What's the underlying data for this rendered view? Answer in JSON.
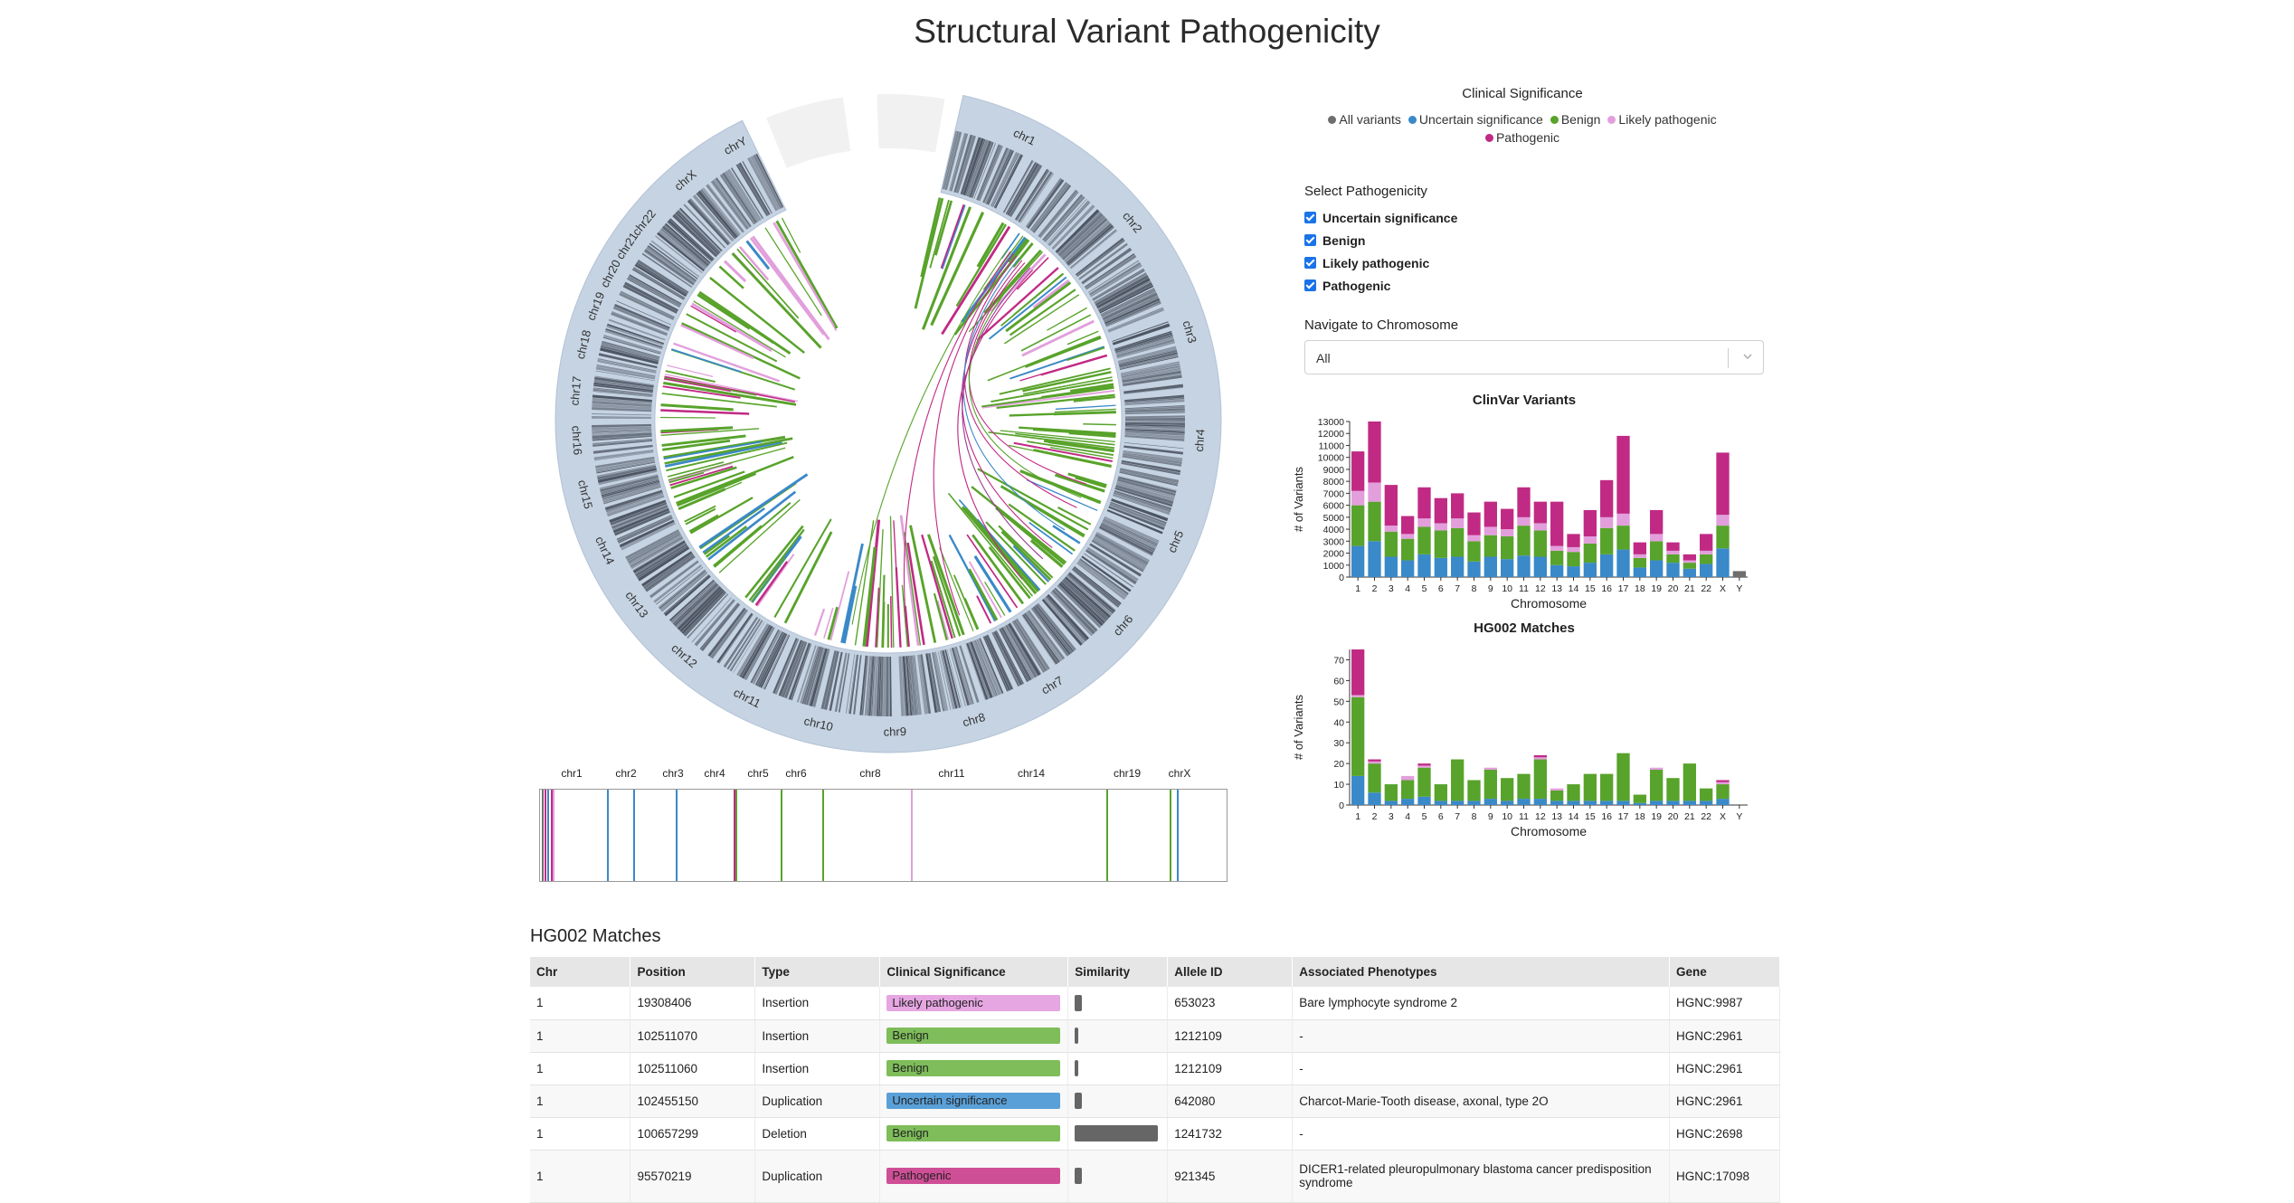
{
  "page": {
    "title": "Structural Variant Pathogenicity"
  },
  "colors": {
    "all": "#6e6e6e",
    "uncertain": "#3a89c9",
    "benign": "#58a32b",
    "likely_pathogenic": "#e29fdc",
    "pathogenic": "#c02a84",
    "ideogram_bg": "#c5d3e2",
    "band_dark": "#58606d"
  },
  "legend": {
    "title": "Clinical Significance",
    "items": [
      {
        "label": "All variants",
        "color": "#6e6e6e"
      },
      {
        "label": "Uncertain significance",
        "color": "#3a89c9"
      },
      {
        "label": "Benign",
        "color": "#58a32b"
      },
      {
        "label": "Likely pathogenic",
        "color": "#e29fdc"
      },
      {
        "label": "Pathogenic",
        "color": "#c02a84"
      }
    ]
  },
  "filters": {
    "title": "Select Pathogenicity",
    "options": [
      {
        "label": "Uncertain significance",
        "checked": true
      },
      {
        "label": "Benign",
        "checked": true
      },
      {
        "label": "Likely pathogenic",
        "checked": true
      },
      {
        "label": "Pathogenic",
        "checked": true
      }
    ]
  },
  "navigate": {
    "title": "Navigate to Chromosome",
    "selected": "All"
  },
  "circos": {
    "chromosomes": [
      "chr1",
      "chr2",
      "chr3",
      "chr4",
      "chr5",
      "chr6",
      "chr7",
      "chr8",
      "chr9",
      "chr10",
      "chr11",
      "chr12",
      "chr13",
      "chr14",
      "chr15",
      "chr16",
      "chr17",
      "chr18",
      "chr19",
      "chr20",
      "chr21",
      "chr22",
      "chrX",
      "chrY"
    ]
  },
  "linear_track": {
    "labels": [
      "chr1",
      "chr2",
      "chr3",
      "chr4",
      "chr5",
      "chr6",
      "chr8",
      "chr11",
      "chr14",
      "chr19",
      "chrX"
    ]
  },
  "chart_data": [
    {
      "type": "bar",
      "title": "ClinVar Variants",
      "xlabel": "Chromosome",
      "ylabel": "# of Variants",
      "ylim": [
        0,
        13000
      ],
      "yticks": [
        0,
        1000,
        2000,
        3000,
        4000,
        5000,
        6000,
        7000,
        8000,
        9000,
        10000,
        11000,
        12000,
        13000
      ],
      "stacked": true,
      "categories": [
        "1",
        "2",
        "3",
        "4",
        "5",
        "6",
        "7",
        "8",
        "9",
        "10",
        "11",
        "12",
        "13",
        "14",
        "15",
        "16",
        "17",
        "18",
        "19",
        "20",
        "21",
        "22",
        "X",
        "Y"
      ],
      "series": [
        {
          "name": "Uncertain significance",
          "values": [
            2600,
            3000,
            1700,
            1400,
            1900,
            1600,
            1700,
            1300,
            1700,
            1500,
            1800,
            1700,
            1000,
            900,
            1200,
            1900,
            2300,
            800,
            1400,
            1200,
            700,
            1100,
            2400,
            0
          ]
        },
        {
          "name": "Benign",
          "values": [
            3400,
            3300,
            2100,
            1800,
            2300,
            2300,
            2400,
            1700,
            1800,
            1900,
            2500,
            2200,
            1200,
            1200,
            1600,
            2200,
            2000,
            800,
            1600,
            700,
            500,
            800,
            1900,
            0
          ]
        },
        {
          "name": "Likely pathogenic",
          "values": [
            1200,
            1600,
            500,
            400,
            700,
            600,
            800,
            500,
            700,
            600,
            700,
            600,
            400,
            400,
            600,
            900,
            1000,
            300,
            600,
            300,
            200,
            300,
            900,
            0
          ]
        },
        {
          "name": "Pathogenic",
          "values": [
            3300,
            5100,
            3400,
            1500,
            2600,
            2100,
            2100,
            1900,
            2100,
            1700,
            2500,
            1800,
            3700,
            1100,
            2200,
            3100,
            6500,
            1000,
            2000,
            700,
            500,
            1400,
            5200,
            0
          ]
        },
        {
          "name": "All variants",
          "values": [
            0,
            0,
            0,
            0,
            0,
            0,
            0,
            0,
            0,
            0,
            0,
            0,
            0,
            0,
            0,
            0,
            0,
            0,
            0,
            0,
            0,
            0,
            0,
            500
          ]
        }
      ]
    },
    {
      "type": "bar",
      "title": "HG002 Matches",
      "xlabel": "Chromosome",
      "ylabel": "# of Variants",
      "ylim": [
        0,
        75
      ],
      "yticks": [
        0,
        10,
        20,
        30,
        40,
        50,
        60,
        70
      ],
      "stacked": true,
      "categories": [
        "1",
        "2",
        "3",
        "4",
        "5",
        "6",
        "7",
        "8",
        "9",
        "10",
        "11",
        "12",
        "13",
        "14",
        "15",
        "16",
        "17",
        "18",
        "19",
        "20",
        "21",
        "22",
        "X",
        "Y"
      ],
      "series": [
        {
          "name": "Uncertain significance",
          "values": [
            14,
            6,
            2,
            3,
            4,
            2,
            2,
            2,
            3,
            2,
            3,
            3,
            2,
            2,
            2,
            2,
            2,
            1,
            2,
            2,
            2,
            2,
            3,
            0
          ]
        },
        {
          "name": "Benign",
          "values": [
            38,
            14,
            8,
            9,
            14,
            8,
            20,
            10,
            14,
            11,
            12,
            19,
            5,
            8,
            13,
            13,
            23,
            4,
            15,
            11,
            18,
            6,
            7,
            0
          ]
        },
        {
          "name": "Likely pathogenic",
          "values": [
            1,
            1,
            0,
            2,
            1,
            0,
            0,
            0,
            1,
            0,
            0,
            1,
            1,
            0,
            0,
            0,
            0,
            0,
            1,
            0,
            0,
            0,
            1,
            0
          ]
        },
        {
          "name": "Pathogenic",
          "values": [
            22,
            1,
            0,
            0,
            1,
            0,
            0,
            0,
            0,
            0,
            0,
            1,
            0,
            0,
            0,
            0,
            0,
            0,
            0,
            0,
            0,
            0,
            1,
            0
          ]
        }
      ]
    }
  ],
  "table": {
    "title": "HG002 Matches",
    "columns": [
      "Chr",
      "Position",
      "Type",
      "Clinical Significance",
      "Similarity",
      "Allele ID",
      "Associated Phenotypes",
      "Gene"
    ],
    "rows": [
      {
        "chr": "1",
        "position": "19308406",
        "type": "Insertion",
        "significance": "Likely pathogenic",
        "sig_color": "#e6a6e2",
        "similarity": 0.08,
        "allele_id": "653023",
        "phenotypes": "Bare lymphocyte syndrome 2",
        "gene": "HGNC:9987"
      },
      {
        "chr": "1",
        "position": "102511070",
        "type": "Insertion",
        "significance": "Benign",
        "sig_color": "#7ebd5a",
        "similarity": 0.03,
        "allele_id": "1212109",
        "phenotypes": "-",
        "gene": "HGNC:2961"
      },
      {
        "chr": "1",
        "position": "102511060",
        "type": "Insertion",
        "significance": "Benign",
        "sig_color": "#7ebd5a",
        "similarity": 0.03,
        "allele_id": "1212109",
        "phenotypes": "-",
        "gene": "HGNC:2961"
      },
      {
        "chr": "1",
        "position": "102455150",
        "type": "Duplication",
        "significance": "Uncertain significance",
        "sig_color": "#5aa0d8",
        "similarity": 0.08,
        "allele_id": "642080",
        "phenotypes": "Charcot-Marie-Tooth disease, axonal, type 2O",
        "gene": "HGNC:2961"
      },
      {
        "chr": "1",
        "position": "100657299",
        "type": "Deletion",
        "significance": "Benign",
        "sig_color": "#7ebd5a",
        "similarity": 1.0,
        "allele_id": "1241732",
        "phenotypes": "-",
        "gene": "HGNC:2698"
      },
      {
        "chr": "1",
        "position": "95570219",
        "type": "Duplication",
        "significance": "Pathogenic",
        "sig_color": "#cf4f97",
        "similarity": 0.08,
        "allele_id": "921345",
        "phenotypes": "DICER1-related pleuropulmonary blastoma cancer predisposition syndrome",
        "gene": "HGNC:17098"
      }
    ]
  }
}
